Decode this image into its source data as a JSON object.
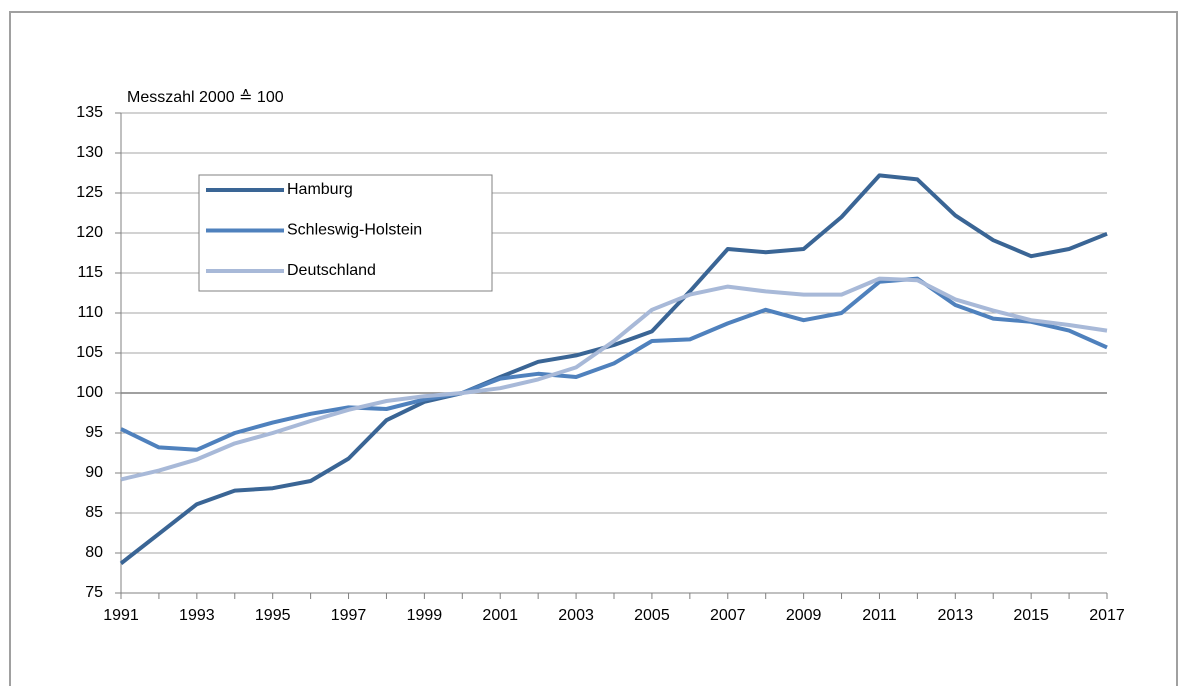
{
  "chart_data": {
    "type": "line",
    "y_label": "Messzahl 2000 ≙ 100",
    "x": [
      1991,
      1992,
      1993,
      1994,
      1995,
      1996,
      1997,
      1998,
      1999,
      2000,
      2001,
      2002,
      2003,
      2004,
      2005,
      2006,
      2007,
      2008,
      2009,
      2010,
      2011,
      2012,
      2013,
      2014,
      2015,
      2016,
      2017
    ],
    "series": [
      {
        "name": "Hamburg",
        "color": "#3a6595",
        "values": [
          78.7,
          82.4,
          86.1,
          87.8,
          88.1,
          89.0,
          91.8,
          96.6,
          98.9,
          100,
          102,
          103.9,
          104.7,
          106,
          107.7,
          112.7,
          118,
          117.6,
          118,
          122,
          127.2,
          126.7,
          122.2,
          119.1,
          117.1,
          118,
          119.9
        ]
      },
      {
        "name": "Schleswig-Holstein",
        "color": "#4f81bd",
        "values": [
          95.5,
          93.2,
          92.9,
          95,
          96.3,
          97.4,
          98.2,
          98,
          99.2,
          100,
          101.8,
          102.4,
          102,
          103.7,
          106.5,
          106.7,
          108.7,
          110.4,
          109.1,
          110,
          113.9,
          114.3,
          111,
          109.3,
          108.9,
          107.8,
          105.7
        ]
      },
      {
        "name": "Deutschland",
        "color": "#a8b9d8",
        "values": [
          89.2,
          90.3,
          91.7,
          93.7,
          95,
          96.5,
          97.9,
          99,
          99.6,
          100,
          100.6,
          101.7,
          103.2,
          106.5,
          110.4,
          112.3,
          113.3,
          112.7,
          112.3,
          112.3,
          114.3,
          114.1,
          111.7,
          110.3,
          109.1,
          108.5,
          107.8
        ]
      }
    ],
    "xlim": [
      1991,
      2017
    ],
    "xticks": [
      1991,
      1993,
      1995,
      1997,
      1999,
      2001,
      2003,
      2005,
      2007,
      2009,
      2011,
      2013,
      2015,
      2017
    ],
    "ylim": [
      75,
      135
    ],
    "yticks": [
      75,
      80,
      85,
      90,
      95,
      100,
      105,
      110,
      115,
      120,
      125,
      130,
      135
    ],
    "reference_line": 100,
    "grid": true,
    "legend": "upper left"
  }
}
